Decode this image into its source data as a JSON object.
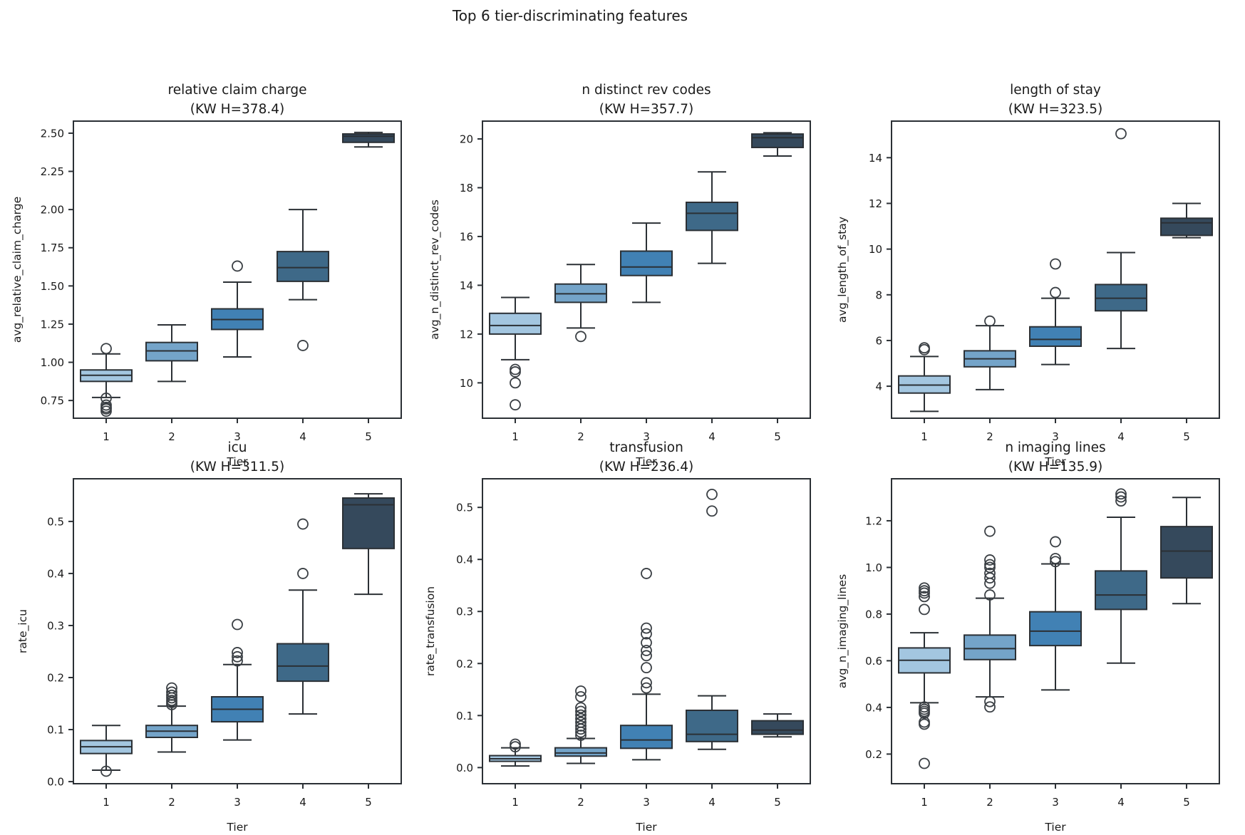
{
  "figure": {
    "title": "Top 6 tier-discriminating features",
    "text_color": "#1a1a1a",
    "line_color": "#2b3035",
    "tier_colors": [
      "#a3c6e0",
      "#74a4c9",
      "#4181b4",
      "#3e6988",
      "#35495c"
    ]
  },
  "chart_data": [
    {
      "type": "box",
      "title": "relative claim charge",
      "subtitle": "(KW H=378.4)",
      "xlabel": "Tier",
      "ylabel": "avg_relative_claim_charge",
      "categories": [
        "1",
        "2",
        "3",
        "4",
        "5"
      ],
      "ylim": [
        0.634,
        2.579
      ],
      "yticks": [
        0.75,
        1.0,
        1.25,
        1.5,
        1.75,
        2.0,
        2.25,
        2.5
      ],
      "ytick_labels": [
        "0.75",
        "1.00",
        "1.25",
        "1.50",
        "1.75",
        "2.00",
        "2.25",
        "2.50"
      ],
      "boxes": [
        {
          "tier": "1",
          "whisker_low": 0.77,
          "q1": 0.875,
          "median": 0.915,
          "q3": 0.95,
          "whisker_high": 1.055,
          "outliers": [
            1.09,
            0.765,
            0.72,
            0.705,
            0.695,
            0.68
          ]
        },
        {
          "tier": "2",
          "whisker_low": 0.875,
          "q1": 1.01,
          "median": 1.075,
          "q3": 1.13,
          "whisker_high": 1.245,
          "outliers": []
        },
        {
          "tier": "3",
          "whisker_low": 1.035,
          "q1": 1.215,
          "median": 1.28,
          "q3": 1.35,
          "whisker_high": 1.525,
          "outliers": [
            1.63
          ]
        },
        {
          "tier": "4",
          "whisker_low": 1.41,
          "q1": 1.53,
          "median": 1.62,
          "q3": 1.725,
          "whisker_high": 2.0,
          "outliers": [
            1.11
          ]
        },
        {
          "tier": "5",
          "whisker_low": 2.41,
          "q1": 2.44,
          "median": 2.48,
          "q3": 2.495,
          "whisker_high": 2.505,
          "outliers": []
        }
      ]
    },
    {
      "type": "box",
      "title": "n distinct rev codes",
      "subtitle": "(KW H=357.7)",
      "xlabel": "Tier",
      "ylabel": "avg_n_distinct_rev_codes",
      "categories": [
        "1",
        "2",
        "3",
        "4",
        "5"
      ],
      "ylim": [
        8.55,
        20.73
      ],
      "yticks": [
        10,
        12,
        14,
        16,
        18,
        20
      ],
      "ytick_labels": [
        "10",
        "12",
        "14",
        "16",
        "18",
        "20"
      ],
      "boxes": [
        {
          "tier": "1",
          "whisker_low": 10.95,
          "q1": 12.0,
          "median": 12.35,
          "q3": 12.85,
          "whisker_high": 13.5,
          "outliers": [
            10.55,
            10.45,
            10.0,
            9.1
          ]
        },
        {
          "tier": "2",
          "whisker_low": 12.25,
          "q1": 13.3,
          "median": 13.65,
          "q3": 14.05,
          "whisker_high": 14.85,
          "outliers": [
            11.9
          ]
        },
        {
          "tier": "3",
          "whisker_low": 13.3,
          "q1": 14.4,
          "median": 14.75,
          "q3": 15.4,
          "whisker_high": 16.55,
          "outliers": []
        },
        {
          "tier": "4",
          "whisker_low": 14.9,
          "q1": 16.25,
          "median": 16.95,
          "q3": 17.4,
          "whisker_high": 18.65,
          "outliers": []
        },
        {
          "tier": "5",
          "whisker_low": 19.3,
          "q1": 19.65,
          "median": 20.05,
          "q3": 20.2,
          "whisker_high": 20.25,
          "outliers": []
        }
      ]
    },
    {
      "type": "box",
      "title": "length of stay",
      "subtitle": "(KW H=323.5)",
      "xlabel": "Tier",
      "ylabel": "avg_length_of_stay",
      "categories": [
        "1",
        "2",
        "3",
        "4",
        "5"
      ],
      "ylim": [
        2.6,
        15.6
      ],
      "yticks": [
        4,
        6,
        8,
        10,
        12,
        14
      ],
      "ytick_labels": [
        "4",
        "6",
        "8",
        "10",
        "12",
        "14"
      ],
      "boxes": [
        {
          "tier": "1",
          "whisker_low": 2.9,
          "q1": 3.7,
          "median": 4.05,
          "q3": 4.45,
          "whisker_high": 5.3,
          "outliers": [
            5.6,
            5.68
          ]
        },
        {
          "tier": "2",
          "whisker_low": 3.85,
          "q1": 4.85,
          "median": 5.2,
          "q3": 5.55,
          "whisker_high": 6.65,
          "outliers": [
            6.85
          ]
        },
        {
          "tier": "3",
          "whisker_low": 4.95,
          "q1": 5.75,
          "median": 6.05,
          "q3": 6.6,
          "whisker_high": 7.85,
          "outliers": [
            8.1,
            9.35
          ]
        },
        {
          "tier": "4",
          "whisker_low": 5.65,
          "q1": 7.3,
          "median": 7.85,
          "q3": 8.45,
          "whisker_high": 9.85,
          "outliers": [
            15.05
          ]
        },
        {
          "tier": "5",
          "whisker_low": 10.5,
          "q1": 10.6,
          "median": 11.15,
          "q3": 11.35,
          "whisker_high": 12.0,
          "outliers": []
        }
      ]
    },
    {
      "type": "box",
      "title": "icu",
      "subtitle": "(KW H=311.5)",
      "xlabel": "Tier",
      "ylabel": "rate_icu",
      "categories": [
        "1",
        "2",
        "3",
        "4",
        "5"
      ],
      "ylim": [
        -0.004,
        0.582
      ],
      "yticks": [
        0.0,
        0.1,
        0.2,
        0.3,
        0.4,
        0.5
      ],
      "ytick_labels": [
        "0.0",
        "0.1",
        "0.2",
        "0.3",
        "0.4",
        "0.5"
      ],
      "boxes": [
        {
          "tier": "1",
          "whisker_low": 0.022,
          "q1": 0.054,
          "median": 0.067,
          "q3": 0.079,
          "whisker_high": 0.108,
          "outliers": [
            0.02
          ]
        },
        {
          "tier": "2",
          "whisker_low": 0.057,
          "q1": 0.085,
          "median": 0.097,
          "q3": 0.108,
          "whisker_high": 0.145,
          "outliers": [
            0.148,
            0.152,
            0.156,
            0.161,
            0.166,
            0.172,
            0.18
          ]
        },
        {
          "tier": "3",
          "whisker_low": 0.08,
          "q1": 0.115,
          "median": 0.139,
          "q3": 0.163,
          "whisker_high": 0.225,
          "outliers": [
            0.232,
            0.24,
            0.248,
            0.302
          ]
        },
        {
          "tier": "4",
          "whisker_low": 0.13,
          "q1": 0.193,
          "median": 0.222,
          "q3": 0.265,
          "whisker_high": 0.368,
          "outliers": [
            0.4,
            0.495
          ]
        },
        {
          "tier": "5",
          "whisker_low": 0.36,
          "q1": 0.448,
          "median": 0.532,
          "q3": 0.545,
          "whisker_high": 0.553,
          "outliers": []
        }
      ]
    },
    {
      "type": "box",
      "title": "transfusion",
      "subtitle": "(KW H=236.4)",
      "xlabel": "Tier",
      "ylabel": "rate_transfusion",
      "categories": [
        "1",
        "2",
        "3",
        "4",
        "5"
      ],
      "ylim": [
        -0.031,
        0.555
      ],
      "yticks": [
        0.0,
        0.1,
        0.2,
        0.3,
        0.4,
        0.5
      ],
      "ytick_labels": [
        "0.0",
        "0.1",
        "0.2",
        "0.3",
        "0.4",
        "0.5"
      ],
      "boxes": [
        {
          "tier": "1",
          "whisker_low": 0.003,
          "q1": 0.012,
          "median": 0.017,
          "q3": 0.023,
          "whisker_high": 0.038,
          "outliers": [
            0.04,
            0.045
          ]
        },
        {
          "tier": "2",
          "whisker_low": 0.008,
          "q1": 0.022,
          "median": 0.028,
          "q3": 0.038,
          "whisker_high": 0.056,
          "outliers": [
            0.062,
            0.068,
            0.074,
            0.08,
            0.087,
            0.094,
            0.101,
            0.108,
            0.115,
            0.136,
            0.147
          ]
        },
        {
          "tier": "3",
          "whisker_low": 0.015,
          "q1": 0.037,
          "median": 0.053,
          "q3": 0.081,
          "whisker_high": 0.141,
          "outliers": [
            0.153,
            0.163,
            0.192,
            0.215,
            0.225,
            0.24,
            0.257,
            0.268,
            0.373
          ]
        },
        {
          "tier": "4",
          "whisker_low": 0.035,
          "q1": 0.05,
          "median": 0.064,
          "q3": 0.11,
          "whisker_high": 0.138,
          "outliers": [
            0.493,
            0.525
          ]
        },
        {
          "tier": "5",
          "whisker_low": 0.059,
          "q1": 0.064,
          "median": 0.072,
          "q3": 0.09,
          "whisker_high": 0.103,
          "outliers": []
        }
      ]
    },
    {
      "type": "box",
      "title": "n imaging lines",
      "subtitle": "(KW H=135.9)",
      "xlabel": "Tier",
      "ylabel": "avg_n_imaging_lines",
      "categories": [
        "1",
        "2",
        "3",
        "4",
        "5"
      ],
      "ylim": [
        0.073,
        1.38
      ],
      "yticks": [
        0.2,
        0.4,
        0.6,
        0.8,
        1.0,
        1.2
      ],
      "ytick_labels": [
        "0.2",
        "0.4",
        "0.6",
        "0.8",
        "1.0",
        "1.2"
      ],
      "boxes": [
        {
          "tier": "1",
          "whisker_low": 0.42,
          "q1": 0.548,
          "median": 0.602,
          "q3": 0.655,
          "whisker_high": 0.72,
          "outliers": [
            0.82,
            0.875,
            0.89,
            0.9,
            0.912,
            0.402,
            0.392,
            0.383,
            0.375,
            0.337,
            0.328,
            0.16
          ]
        },
        {
          "tier": "2",
          "whisker_low": 0.445,
          "q1": 0.605,
          "median": 0.652,
          "q3": 0.71,
          "whisker_high": 0.868,
          "outliers": [
            0.882,
            0.932,
            0.955,
            0.975,
            1.0,
            1.012,
            1.032,
            1.155,
            0.425,
            0.402
          ]
        },
        {
          "tier": "3",
          "whisker_low": 0.475,
          "q1": 0.665,
          "median": 0.727,
          "q3": 0.81,
          "whisker_high": 1.015,
          "outliers": [
            1.025,
            1.038,
            1.11
          ]
        },
        {
          "tier": "4",
          "whisker_low": 0.59,
          "q1": 0.82,
          "median": 0.882,
          "q3": 0.985,
          "whisker_high": 1.215,
          "outliers": [
            1.285,
            1.302,
            1.315
          ]
        },
        {
          "tier": "5",
          "whisker_low": 0.845,
          "q1": 0.955,
          "median": 1.07,
          "q3": 1.175,
          "whisker_high": 1.3,
          "outliers": []
        }
      ]
    }
  ]
}
